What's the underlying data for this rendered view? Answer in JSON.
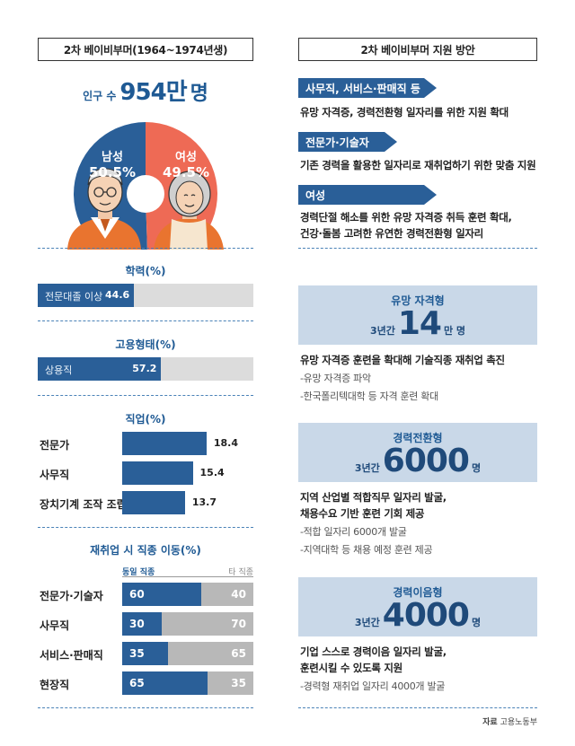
{
  "left_header": "2차 베이비부머(1964~1974년생)",
  "right_header": "2차 베이비부머 지원 방안",
  "population": {
    "prefix": "인구 수",
    "number": "954만",
    "unit": "명"
  },
  "gender": {
    "male_label": "남성",
    "male_value": "50.5%",
    "female_label": "여성",
    "female_value": "49.5%",
    "male_color": "#2a5f98",
    "female_color": "#ee6a55"
  },
  "education": {
    "title": "학력(%)",
    "label": "전문대졸 이상",
    "value_text": "44.6"
  },
  "employment": {
    "title": "고용형태(%)",
    "label": "상용직",
    "value_text": "57.2"
  },
  "occupation": {
    "title": "직업(%)",
    "rows": [
      {
        "label": "전문가",
        "value_text": "18.4"
      },
      {
        "label": "사무직",
        "value_text": "15.4"
      },
      {
        "label": "장치기계 조작 조립",
        "value_text": "13.7"
      }
    ]
  },
  "switching": {
    "title": "재취업 시 직종 이동(%)",
    "legend_same": "동일 직종",
    "legend_other": "타 직종",
    "rows": [
      {
        "label": "전문가·기술자",
        "same_text": "60",
        "other_text": "40"
      },
      {
        "label": "사무직",
        "same_text": "30",
        "other_text": "70"
      },
      {
        "label": "서비스·판매직",
        "same_text": "35",
        "other_text": "65"
      },
      {
        "label": "현장직",
        "same_text": "65",
        "other_text": "35"
      }
    ]
  },
  "support": {
    "groups": [
      {
        "tag": "사무직, 서비스·판매직 등",
        "desc": "유망 자격증, 경력전환형 일자리를 위한 지원 확대"
      },
      {
        "tag": "전문가·기술자",
        "desc": "기존 경력을 활용한 일자리로 재취업하기 위한 맞춤 지원"
      },
      {
        "tag": "여성",
        "desc_line1": "경력단절 해소를 위한 유망 자격증 취득 훈련 확대,",
        "desc_line2": "건강·돌봄 고려한 유연한 경력전환형 일자리"
      }
    ],
    "programs": [
      {
        "title": "유망 자격형",
        "period": "3년간",
        "number": "14",
        "unit": "만 명",
        "desc_line1": "유망 자격증 훈련을 확대해 기술직종 재취업 촉진",
        "items": [
          "-유망 자격증 파악",
          "-한국폴리텍대학 등 자격 훈련 확대"
        ]
      },
      {
        "title": "경력전환형",
        "period": "3년간",
        "number": "6000",
        "unit": "명",
        "desc_line1": "지역 산업별 적합직무 일자리 발굴,",
        "desc_line2": "채용수요 기반 훈련 기회 제공",
        "items": [
          "-적합 일자리 6000개 발굴",
          "-지역대학 등 채용 예정 훈련 제공"
        ]
      },
      {
        "title": "경력이음형",
        "period": "3년간",
        "number": "4000",
        "unit": "명",
        "desc_line1": "기업 스스로 경력이음 일자리 발굴,",
        "desc_line2": "훈련시킬 수 있도록 지원",
        "items": [
          "-경력형 재취업 일자리 4000개 발굴"
        ]
      }
    ]
  },
  "source_label": "자료",
  "source": "고용노동부",
  "chart_data": [
    {
      "type": "pie",
      "categories": [
        "남성",
        "여성"
      ],
      "values": [
        50.5,
        49.5
      ]
    },
    {
      "type": "bar",
      "title": "학력(%)",
      "categories": [
        "전문대졸 이상"
      ],
      "values": [
        44.6
      ],
      "ylim": [
        0,
        100
      ]
    },
    {
      "type": "bar",
      "title": "고용형태(%)",
      "categories": [
        "상용직"
      ],
      "values": [
        57.2
      ],
      "ylim": [
        0,
        100
      ]
    },
    {
      "type": "bar",
      "title": "직업(%)",
      "categories": [
        "전문가",
        "사무직",
        "장치기계 조작 조립"
      ],
      "values": [
        18.4,
        15.4,
        13.7
      ]
    },
    {
      "type": "bar",
      "title": "재취업 시 직종 이동(%)",
      "categories": [
        "전문가·기술자",
        "사무직",
        "서비스·판매직",
        "현장직"
      ],
      "series": [
        {
          "name": "동일 직종",
          "values": [
            60,
            30,
            35,
            65
          ]
        },
        {
          "name": "타 직종",
          "values": [
            40,
            70,
            65,
            35
          ]
        }
      ],
      "ylim": [
        0,
        100
      ]
    }
  ]
}
